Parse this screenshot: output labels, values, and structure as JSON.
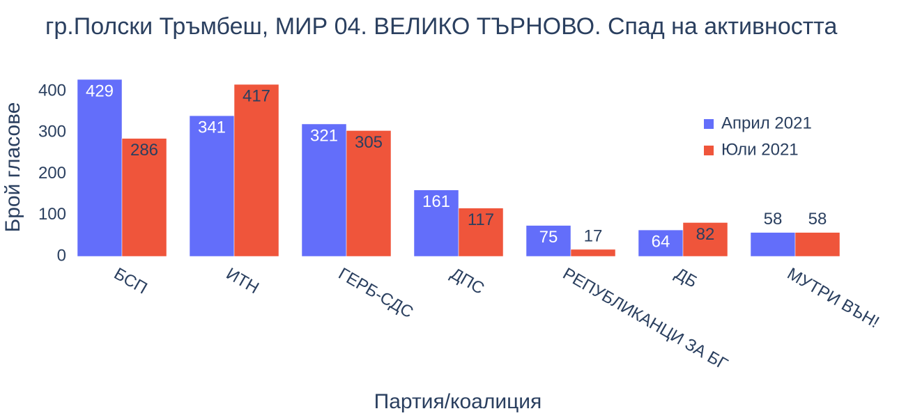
{
  "chart_data": {
    "type": "bar",
    "title": "гр.Полски Тръмбеш, МИР 04. ВЕЛИКО ТЪРНОВО. Спад на активността",
    "x_label": "Партия/коалиция",
    "y_label": "Брой гласове",
    "categories": [
      "БСП",
      "ИТН",
      "ГЕРБ-СДС",
      "ДПС",
      "РЕПУБЛИКАНЦИ ЗА БГ",
      "ДБ",
      "МУТРИ ВЪН!"
    ],
    "series": [
      {
        "name": "Април 2021",
        "color": "#636efa",
        "values": [
          429,
          341,
          321,
          161,
          75,
          64,
          58
        ]
      },
      {
        "name": "Юли 2021",
        "color": "#EF553B",
        "values": [
          286,
          417,
          305,
          117,
          17,
          82,
          58
        ]
      }
    ],
    "ylim": [
      0,
      451
    ],
    "yticks": [
      0,
      100,
      200,
      300,
      400
    ],
    "legend": "top-right"
  }
}
